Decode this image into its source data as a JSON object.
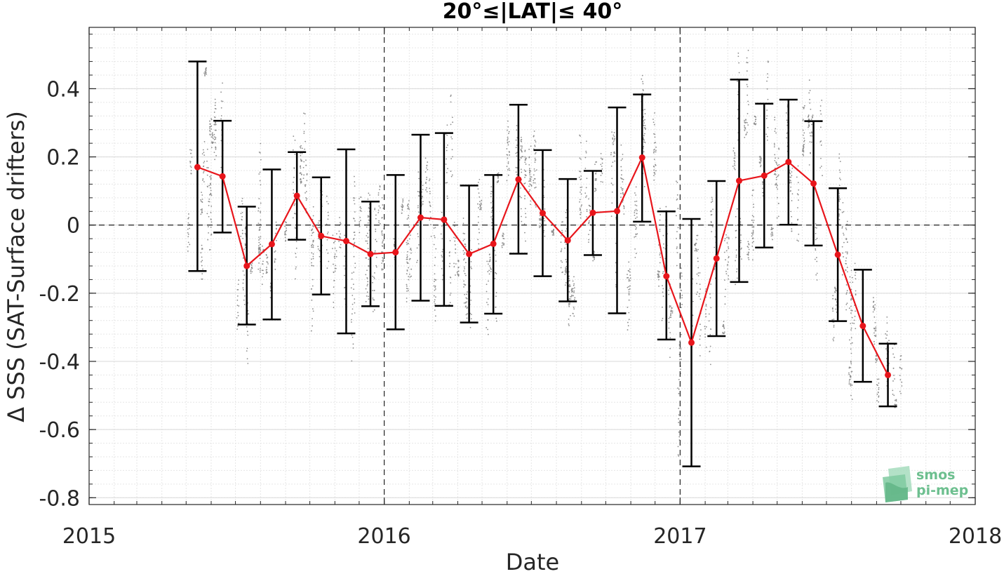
{
  "chart_data": {
    "type": "line",
    "title": "20°≤|LAT|≤ 40°",
    "xlabel": "Date",
    "ylabel": "Δ SSS (SAT-Surface drifters)",
    "xlim": [
      "2015-01-01",
      "2018-01-01"
    ],
    "ylim": [
      -0.82,
      0.58
    ],
    "x_tick_labels": [
      "2015",
      "2016",
      "2017",
      "2018"
    ],
    "y_tick_labels": [
      "-0.8",
      "-0.6",
      "-0.4",
      "-0.2",
      "0",
      "0.2",
      "0.4"
    ],
    "y_ticks": [
      -0.8,
      -0.6,
      -0.4,
      -0.2,
      0,
      0.2,
      0.4
    ],
    "grid": true,
    "reference_lines": {
      "horizontal": [
        0
      ],
      "vertical_dates": [
        "2016-01-01",
        "2017-01-01"
      ],
      "style": "dashed"
    },
    "series": [
      {
        "color": "#e8151b",
        "marker": "circle",
        "error_bar_color": "#000000",
        "points": [
          {
            "date": "2015-05-15",
            "y": 0.17,
            "low": -0.135,
            "high": 0.48
          },
          {
            "date": "2015-06-15",
            "y": 0.143,
            "low": -0.022,
            "high": 0.306
          },
          {
            "date": "2015-07-15",
            "y": -0.12,
            "low": -0.292,
            "high": 0.054
          },
          {
            "date": "2015-08-15",
            "y": -0.056,
            "low": -0.277,
            "high": 0.163
          },
          {
            "date": "2015-09-15",
            "y": 0.086,
            "low": -0.043,
            "high": 0.214
          },
          {
            "date": "2015-10-15",
            "y": -0.032,
            "low": -0.204,
            "high": 0.14
          },
          {
            "date": "2015-11-15",
            "y": -0.047,
            "low": -0.318,
            "high": 0.222
          },
          {
            "date": "2015-12-15",
            "y": -0.085,
            "low": -0.238,
            "high": 0.069
          },
          {
            "date": "2016-01-15",
            "y": -0.08,
            "low": -0.306,
            "high": 0.147
          },
          {
            "date": "2016-02-15",
            "y": 0.022,
            "low": -0.222,
            "high": 0.265
          },
          {
            "date": "2016-03-15",
            "y": 0.016,
            "low": -0.237,
            "high": 0.27
          },
          {
            "date": "2016-04-15",
            "y": -0.085,
            "low": -0.286,
            "high": 0.116
          },
          {
            "date": "2016-05-15",
            "y": -0.055,
            "low": -0.26,
            "high": 0.147
          },
          {
            "date": "2016-06-15",
            "y": 0.134,
            "low": -0.084,
            "high": 0.353
          },
          {
            "date": "2016-07-15",
            "y": 0.035,
            "low": -0.15,
            "high": 0.22
          },
          {
            "date": "2016-08-15",
            "y": -0.045,
            "low": -0.224,
            "high": 0.135
          },
          {
            "date": "2016-09-15",
            "y": 0.036,
            "low": -0.088,
            "high": 0.159
          },
          {
            "date": "2016-10-15",
            "y": 0.041,
            "low": -0.259,
            "high": 0.345
          },
          {
            "date": "2016-11-15",
            "y": 0.198,
            "low": 0.01,
            "high": 0.383
          },
          {
            "date": "2016-12-15",
            "y": -0.15,
            "low": -0.336,
            "high": 0.04
          },
          {
            "date": "2017-01-15",
            "y": -0.345,
            "low": -0.708,
            "high": 0.018
          },
          {
            "date": "2017-02-15",
            "y": -0.098,
            "low": -0.326,
            "high": 0.129
          },
          {
            "date": "2017-03-15",
            "y": 0.13,
            "low": -0.167,
            "high": 0.427
          },
          {
            "date": "2017-04-15",
            "y": 0.145,
            "low": -0.066,
            "high": 0.356
          },
          {
            "date": "2017-05-15",
            "y": 0.185,
            "low": 0.001,
            "high": 0.368
          },
          {
            "date": "2017-06-15",
            "y": 0.122,
            "low": -0.06,
            "high": 0.305
          },
          {
            "date": "2017-07-15",
            "y": -0.087,
            "low": -0.282,
            "high": 0.108
          },
          {
            "date": "2017-08-15",
            "y": -0.296,
            "low": -0.46,
            "high": -0.131
          },
          {
            "date": "2017-09-15",
            "y": -0.44,
            "low": -0.532,
            "high": -0.348
          }
        ]
      }
    ],
    "background_scatter": {
      "color": "#8c8c8c",
      "marker": "dot",
      "description_visible": false
    }
  },
  "logo": {
    "line1": "smos",
    "line2": "pi-mep",
    "color": "#6dbf8f"
  }
}
